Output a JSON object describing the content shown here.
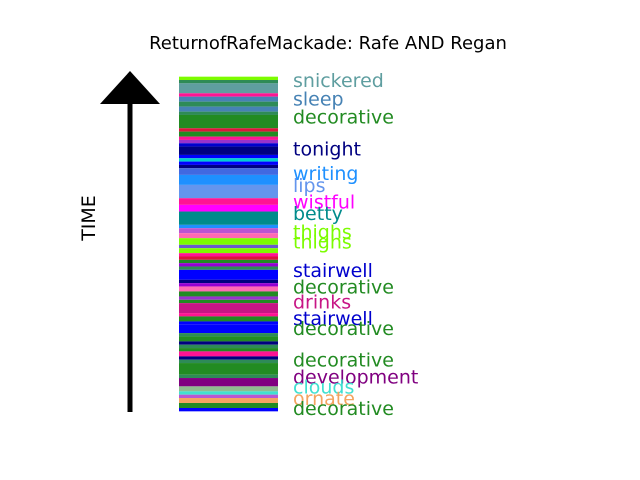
{
  "chart_data": {
    "type": "bar",
    "title": "ReturnofRafeMackade: Rafe AND Regan",
    "ylabel": "TIME",
    "ylim": [
      0,
      1
    ],
    "stripes": [
      {
        "start": 0.995,
        "end": 1.0,
        "color": "#ffffff"
      },
      {
        "start": 0.985,
        "end": 0.995,
        "color": "#7cfc00"
      },
      {
        "start": 0.975,
        "end": 0.985,
        "color": "#2e8b57"
      },
      {
        "start": 0.945,
        "end": 0.975,
        "color": "#5f9ea0"
      },
      {
        "start": 0.935,
        "end": 0.945,
        "color": "#ff1493"
      },
      {
        "start": 0.92,
        "end": 0.935,
        "color": "#4682b4"
      },
      {
        "start": 0.905,
        "end": 0.92,
        "color": "#2e8b57"
      },
      {
        "start": 0.89,
        "end": 0.905,
        "color": "#4682b4"
      },
      {
        "start": 0.88,
        "end": 0.89,
        "color": "#2e8b57"
      },
      {
        "start": 0.84,
        "end": 0.88,
        "color": "#228b22"
      },
      {
        "start": 0.83,
        "end": 0.84,
        "color": "#dc143c"
      },
      {
        "start": 0.815,
        "end": 0.83,
        "color": "#228b22"
      },
      {
        "start": 0.805,
        "end": 0.815,
        "color": "#ff1493"
      },
      {
        "start": 0.795,
        "end": 0.805,
        "color": "#9932cc"
      },
      {
        "start": 0.785,
        "end": 0.795,
        "color": "#0000cd"
      },
      {
        "start": 0.76,
        "end": 0.785,
        "color": "#000080"
      },
      {
        "start": 0.75,
        "end": 0.76,
        "color": "#0000ff"
      },
      {
        "start": 0.74,
        "end": 0.75,
        "color": "#00ced1"
      },
      {
        "start": 0.73,
        "end": 0.74,
        "color": "#0000ff"
      },
      {
        "start": 0.72,
        "end": 0.73,
        "color": "#000080"
      },
      {
        "start": 0.7,
        "end": 0.72,
        "color": "#4169e1"
      },
      {
        "start": 0.67,
        "end": 0.7,
        "color": "#1e90ff"
      },
      {
        "start": 0.63,
        "end": 0.67,
        "color": "#6495ed"
      },
      {
        "start": 0.61,
        "end": 0.63,
        "color": "#ff1493"
      },
      {
        "start": 0.59,
        "end": 0.61,
        "color": "#ff00ff"
      },
      {
        "start": 0.55,
        "end": 0.59,
        "color": "#008b8b"
      },
      {
        "start": 0.54,
        "end": 0.55,
        "color": "#1e90ff"
      },
      {
        "start": 0.525,
        "end": 0.54,
        "color": "#ba55d3"
      },
      {
        "start": 0.51,
        "end": 0.525,
        "color": "#ff69b4"
      },
      {
        "start": 0.49,
        "end": 0.51,
        "color": "#7cfc00"
      },
      {
        "start": 0.48,
        "end": 0.49,
        "color": "#6a5acd"
      },
      {
        "start": 0.465,
        "end": 0.48,
        "color": "#7cfc00"
      },
      {
        "start": 0.455,
        "end": 0.465,
        "color": "#ff1493"
      },
      {
        "start": 0.445,
        "end": 0.455,
        "color": "#dc143c"
      },
      {
        "start": 0.435,
        "end": 0.445,
        "color": "#228b22"
      },
      {
        "start": 0.425,
        "end": 0.435,
        "color": "#9400d3"
      },
      {
        "start": 0.415,
        "end": 0.425,
        "color": "#2e8b57"
      },
      {
        "start": 0.385,
        "end": 0.415,
        "color": "#0000ff"
      },
      {
        "start": 0.375,
        "end": 0.385,
        "color": "#000080"
      },
      {
        "start": 0.365,
        "end": 0.375,
        "color": "#9400d3"
      },
      {
        "start": 0.35,
        "end": 0.365,
        "color": "#ff69b4"
      },
      {
        "start": 0.335,
        "end": 0.35,
        "color": "#228b22"
      },
      {
        "start": 0.325,
        "end": 0.335,
        "color": "#9932cc"
      },
      {
        "start": 0.315,
        "end": 0.325,
        "color": "#228b22"
      },
      {
        "start": 0.285,
        "end": 0.315,
        "color": "#c71585"
      },
      {
        "start": 0.275,
        "end": 0.285,
        "color": "#ff1493"
      },
      {
        "start": 0.26,
        "end": 0.275,
        "color": "#228b22"
      },
      {
        "start": 0.25,
        "end": 0.26,
        "color": "#0000ff"
      },
      {
        "start": 0.225,
        "end": 0.25,
        "color": "#0000ff"
      },
      {
        "start": 0.215,
        "end": 0.225,
        "color": "#2e8b57"
      },
      {
        "start": 0.2,
        "end": 0.215,
        "color": "#228b22"
      },
      {
        "start": 0.19,
        "end": 0.2,
        "color": "#000080"
      },
      {
        "start": 0.18,
        "end": 0.19,
        "color": "#2e8b57"
      },
      {
        "start": 0.17,
        "end": 0.18,
        "color": "#228b22"
      },
      {
        "start": 0.155,
        "end": 0.17,
        "color": "#ff1493"
      },
      {
        "start": 0.145,
        "end": 0.155,
        "color": "#000080"
      },
      {
        "start": 0.135,
        "end": 0.145,
        "color": "#2e8b57"
      },
      {
        "start": 0.1,
        "end": 0.135,
        "color": "#228b22"
      },
      {
        "start": 0.09,
        "end": 0.1,
        "color": "#2e8b57"
      },
      {
        "start": 0.065,
        "end": 0.09,
        "color": "#800080"
      },
      {
        "start": 0.05,
        "end": 0.065,
        "color": "#8fbc8f"
      },
      {
        "start": 0.04,
        "end": 0.05,
        "color": "#40e0d0"
      },
      {
        "start": 0.03,
        "end": 0.04,
        "color": "#ba55d3"
      },
      {
        "start": 0.015,
        "end": 0.03,
        "color": "#f4a460"
      },
      {
        "start": 0.0,
        "end": 0.015,
        "color": "#228b22"
      },
      {
        "start": -0.01,
        "end": 0.0,
        "color": "#0000ff"
      }
    ],
    "labels": [
      {
        "text": "snickered",
        "value": 0.985,
        "color": "#5f9ea0"
      },
      {
        "text": "sleep",
        "value": 0.93,
        "color": "#4682b4"
      },
      {
        "text": "decorative",
        "value": 0.875,
        "color": "#228b22"
      },
      {
        "text": "tonight",
        "value": 0.78,
        "color": "#000080"
      },
      {
        "text": "writing",
        "value": 0.705,
        "color": "#1e90ff"
      },
      {
        "text": "lips",
        "value": 0.67,
        "color": "#6495ed"
      },
      {
        "text": "wistful",
        "value": 0.62,
        "color": "#ff00ff"
      },
      {
        "text": "betty",
        "value": 0.585,
        "color": "#008b8b"
      },
      {
        "text": "thighs",
        "value": 0.53,
        "color": "#7cfc00"
      },
      {
        "text": "thighs",
        "value": 0.5,
        "color": "#7cfc00"
      },
      {
        "text": "stairwell",
        "value": 0.415,
        "color": "#0000cd"
      },
      {
        "text": "decorative",
        "value": 0.365,
        "color": "#228b22"
      },
      {
        "text": "drinks",
        "value": 0.32,
        "color": "#c71585"
      },
      {
        "text": "stairwell",
        "value": 0.27,
        "color": "#0000cd"
      },
      {
        "text": "decorative",
        "value": 0.24,
        "color": "#228b22"
      },
      {
        "text": "decorative",
        "value": 0.145,
        "color": "#228b22"
      },
      {
        "text": "development",
        "value": 0.095,
        "color": "#800080"
      },
      {
        "text": "clouds",
        "value": 0.065,
        "color": "#40e0d0"
      },
      {
        "text": "ornate",
        "value": 0.03,
        "color": "#f4a460"
      },
      {
        "text": "decorative",
        "value": 0.0,
        "color": "#228b22"
      }
    ]
  }
}
